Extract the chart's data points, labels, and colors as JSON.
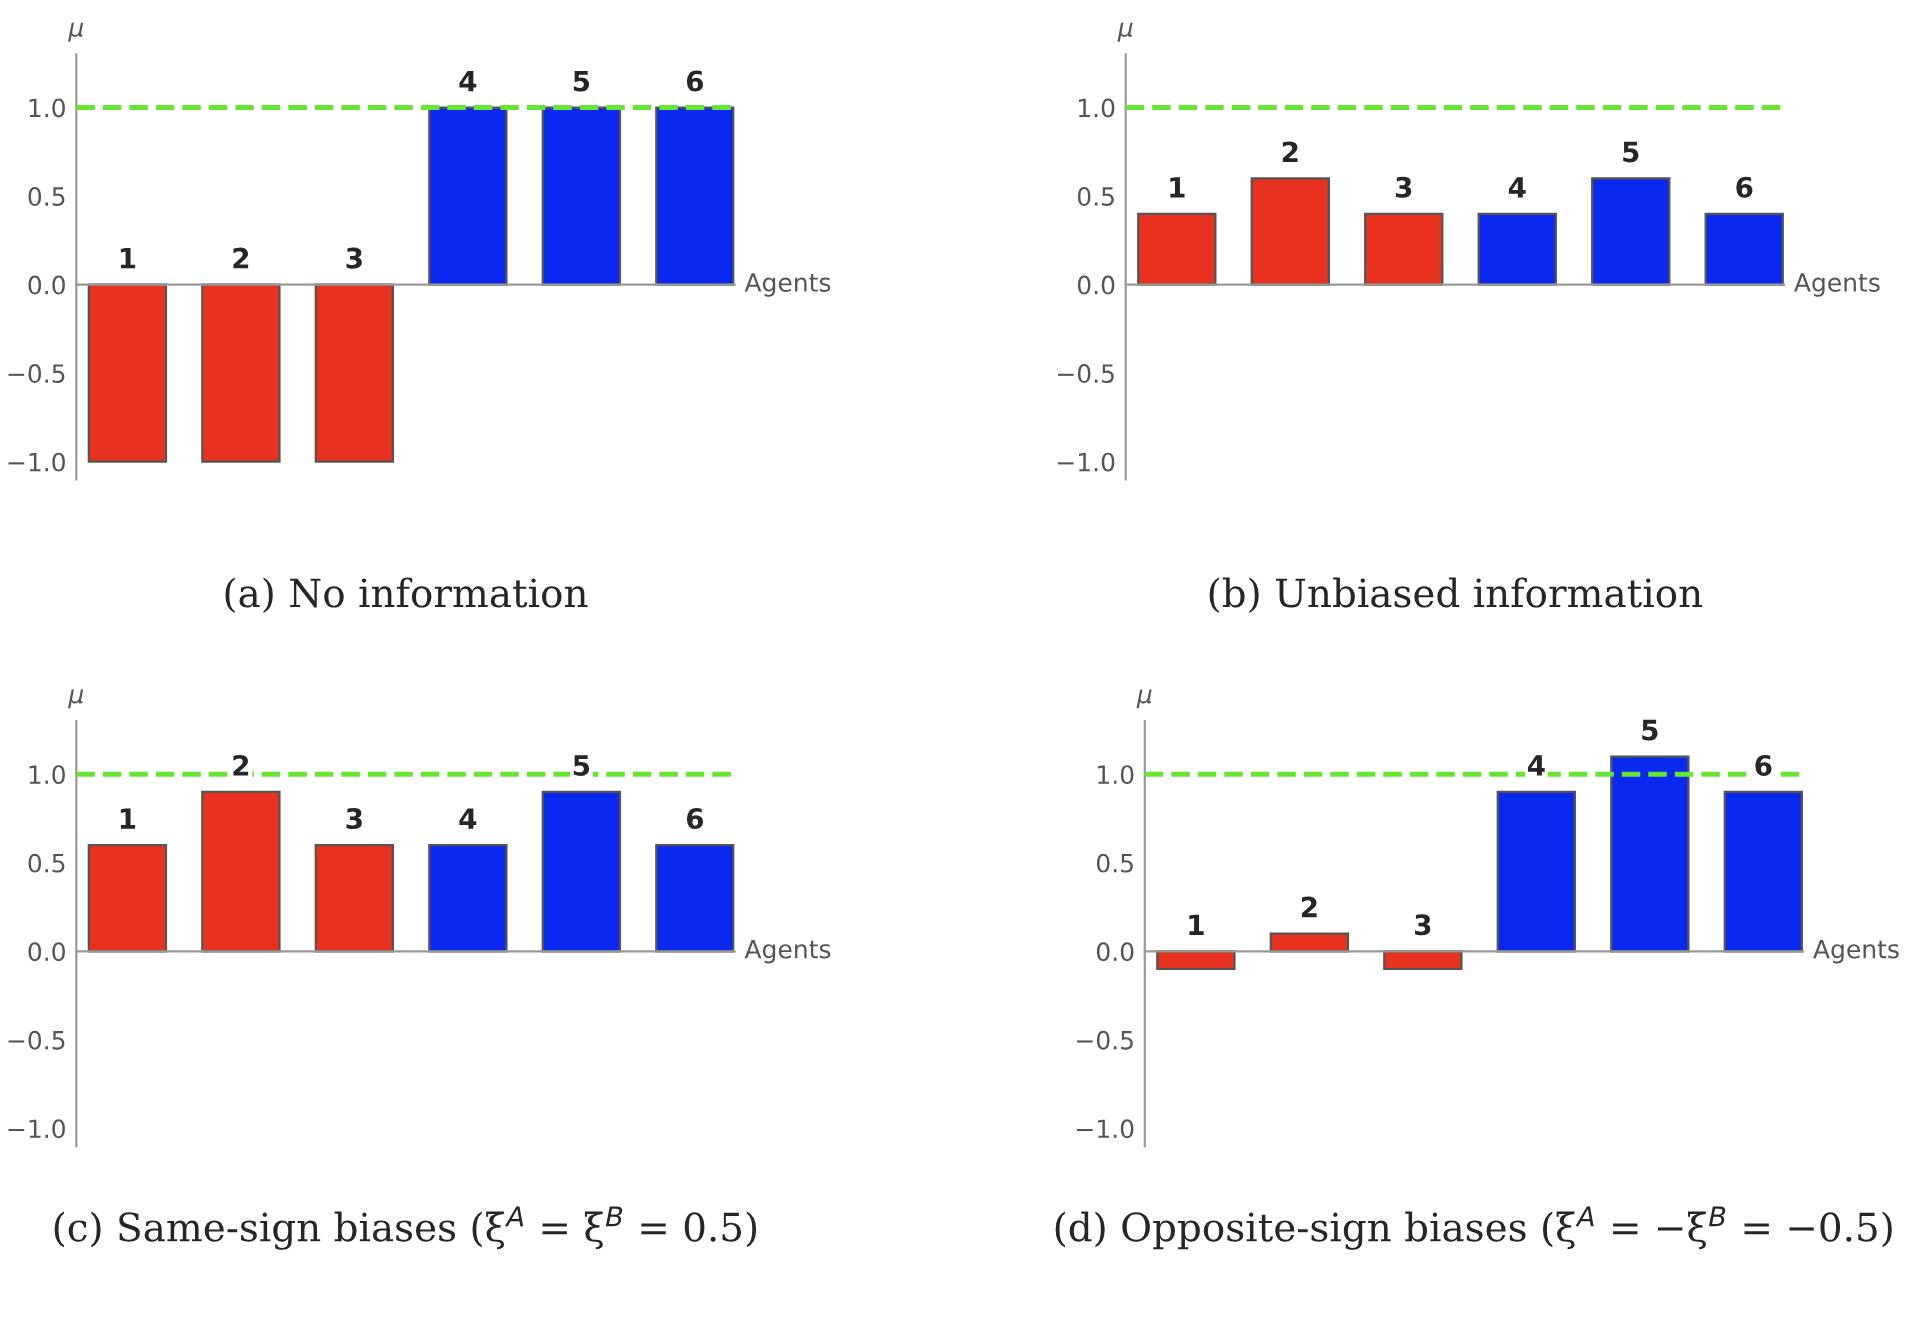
{
  "chart_data": [
    {
      "type": "bar",
      "title": "(a) No information",
      "xlabel": "Agents",
      "ylabel": "μ",
      "categories": [
        "1",
        "2",
        "3",
        "4",
        "5",
        "6"
      ],
      "values": [
        -1,
        -1,
        -1,
        1,
        1,
        1
      ],
      "colors": [
        "#e8321f",
        "#e8321f",
        "#e8321f",
        "#0a28f0",
        "#0a28f0",
        "#0a28f0"
      ],
      "ylim": [
        -1.1,
        1.3
      ],
      "yticks": [
        {
          "value": -1,
          "label": "−1.0"
        },
        {
          "value": -0.5,
          "label": "−0.5"
        },
        {
          "value": 0,
          "label": "0.0"
        },
        {
          "value": 0.5,
          "label": "0.5"
        },
        {
          "value": 1,
          "label": "1.0"
        }
      ],
      "ref_lines": [
        {
          "axis": "y",
          "value": 1,
          "color": "#66e633",
          "line_style": "dashed"
        }
      ]
    },
    {
      "type": "bar",
      "title": "(b) Unbiased information",
      "xlabel": "Agents",
      "ylabel": "μ",
      "categories": [
        "1",
        "2",
        "3",
        "4",
        "5",
        "6"
      ],
      "values": [
        0.4,
        0.6,
        0.4,
        0.4,
        0.6,
        0.4
      ],
      "colors": [
        "#e8321f",
        "#e8321f",
        "#e8321f",
        "#0a28f0",
        "#0a28f0",
        "#0a28f0"
      ],
      "ylim": [
        -1.1,
        1.3
      ],
      "yticks": [
        {
          "value": -1,
          "label": "−1.0"
        },
        {
          "value": -0.5,
          "label": "−0.5"
        },
        {
          "value": 0,
          "label": "0.0"
        },
        {
          "value": 0.5,
          "label": "0.5"
        },
        {
          "value": 1,
          "label": "1.0"
        }
      ],
      "ref_lines": [
        {
          "axis": "y",
          "value": 1,
          "color": "#66e633",
          "line_style": "dashed"
        }
      ]
    },
    {
      "type": "bar",
      "title": "(c) Same-sign biases (ξ$^{A}$ = ξ$^{B}$ = 0.5)",
      "xlabel": "Agents",
      "ylabel": "μ",
      "categories": [
        "1",
        "2",
        "3",
        "4",
        "5",
        "6"
      ],
      "values": [
        0.6,
        0.9,
        0.6,
        0.6,
        0.9,
        0.6
      ],
      "colors": [
        "#e8321f",
        "#e8321f",
        "#e8321f",
        "#0a28f0",
        "#0a28f0",
        "#0a28f0"
      ],
      "ylim": [
        -1.1,
        1.3
      ],
      "yticks": [
        {
          "value": -1,
          "label": "−1.0"
        },
        {
          "value": -0.5,
          "label": "−0.5"
        },
        {
          "value": 0,
          "label": "0.0"
        },
        {
          "value": 0.5,
          "label": "0.5"
        },
        {
          "value": 1,
          "label": "1.0"
        }
      ],
      "ref_lines": [
        {
          "axis": "y",
          "value": 1,
          "color": "#66e633",
          "line_style": "dashed"
        }
      ]
    },
    {
      "type": "bar",
      "title": "(d) Opposite-sign biases (ξ$^{A}$ = −ξ$^{B}$ = −0.5)",
      "xlabel": "Agents",
      "ylabel": "μ",
      "categories": [
        "1",
        "2",
        "3",
        "4",
        "5",
        "6"
      ],
      "values": [
        -0.1,
        0.1,
        -0.1,
        0.9,
        1.1,
        0.9
      ],
      "colors": [
        "#e8321f",
        "#e8321f",
        "#e8321f",
        "#0a28f0",
        "#0a28f0",
        "#0a28f0"
      ],
      "ylim": [
        -1.1,
        1.3
      ],
      "yticks": [
        {
          "value": -1,
          "label": "−1.0"
        },
        {
          "value": -0.5,
          "label": "−0.5"
        },
        {
          "value": 0,
          "label": "0.0"
        },
        {
          "value": 0.5,
          "label": "0.5"
        },
        {
          "value": 1,
          "label": "1.0"
        }
      ],
      "ref_lines": [
        {
          "axis": "y",
          "value": 1,
          "color": "#66e633",
          "line_style": "dashed"
        }
      ]
    }
  ]
}
